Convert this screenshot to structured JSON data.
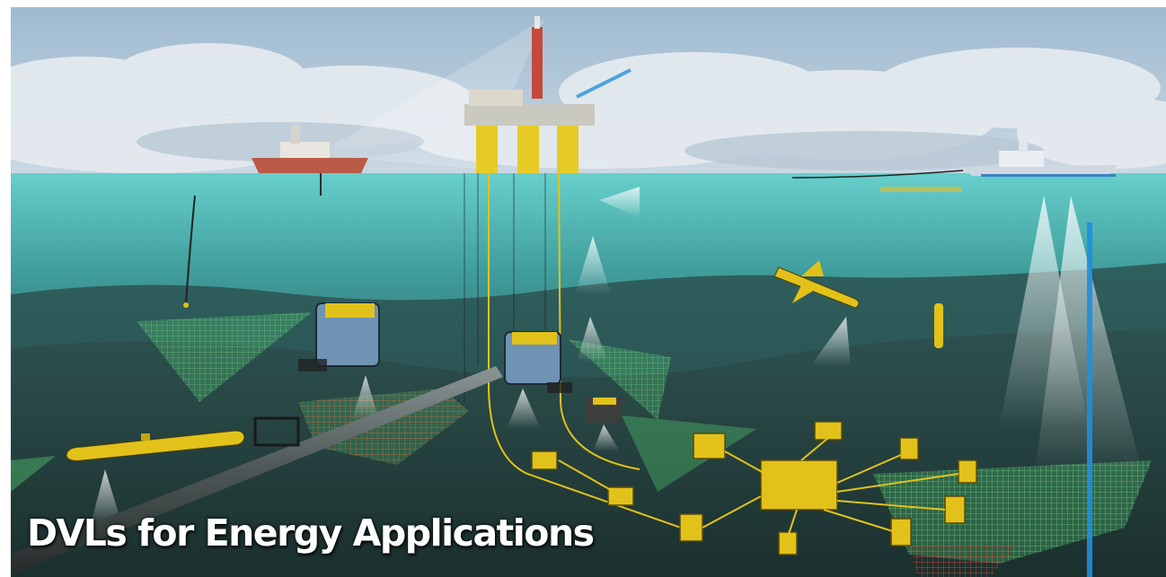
{
  "caption": "DVLs for Energy Applications",
  "colors": {
    "sky_top": "#a9c3d6",
    "cloud": "#dfe6ec",
    "water_surface": "#5fc6c4",
    "deep_water": "#2b5a5c",
    "seabed": "#24403d",
    "equipment_yellow": "#e2c21a",
    "sonar_green": "#5ee87a",
    "sonar_red": "#e23a30",
    "beacon_blue": "#1e8fe0"
  },
  "objects": [
    "oil-platform",
    "survey-vessel",
    "naval-vessel",
    "rov-left",
    "rov-center",
    "auv-glider",
    "auv-torpedo",
    "pipeline",
    "subsea-manifold",
    "sonar-fans"
  ]
}
